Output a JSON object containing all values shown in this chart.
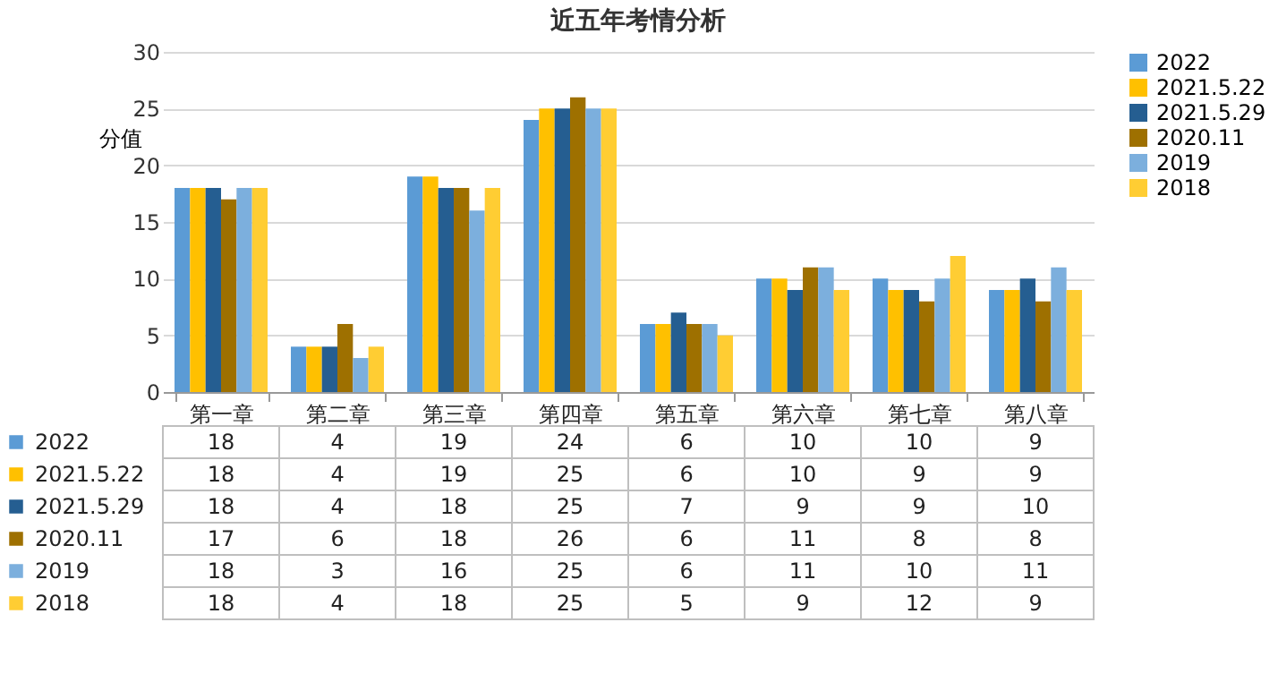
{
  "chart_data": {
    "type": "bar",
    "title": "近五年考情分析",
    "ylabel": "分值",
    "categories": [
      "第一章",
      "第二章",
      "第三章",
      "第四章",
      "第五章",
      "第六章",
      "第七章",
      "第八章"
    ],
    "series": [
      {
        "name": "2022",
        "color": "#5b9bd5",
        "values": [
          18,
          4,
          19,
          24,
          6,
          10,
          10,
          9
        ]
      },
      {
        "name": "2021.5.22",
        "color": "#ffc000",
        "values": [
          18,
          4,
          19,
          25,
          6,
          10,
          9,
          9
        ]
      },
      {
        "name": "2021.5.29",
        "color": "#255e91",
        "values": [
          18,
          4,
          18,
          25,
          7,
          9,
          9,
          10
        ]
      },
      {
        "name": "2020.11",
        "color": "#9e7000",
        "values": [
          17,
          6,
          18,
          26,
          6,
          11,
          8,
          8
        ]
      },
      {
        "name": "2019",
        "color": "#7cafdd",
        "values": [
          18,
          3,
          16,
          25,
          6,
          11,
          10,
          11
        ]
      },
      {
        "name": "2018",
        "color": "#ffcd33",
        "values": [
          18,
          4,
          18,
          25,
          5,
          9,
          12,
          9
        ]
      }
    ],
    "ylim": [
      0,
      30
    ],
    "yticks": [
      0,
      5,
      10,
      15,
      20,
      25,
      30
    ],
    "grid": "y",
    "legend": "right",
    "data_labels": true
  }
}
